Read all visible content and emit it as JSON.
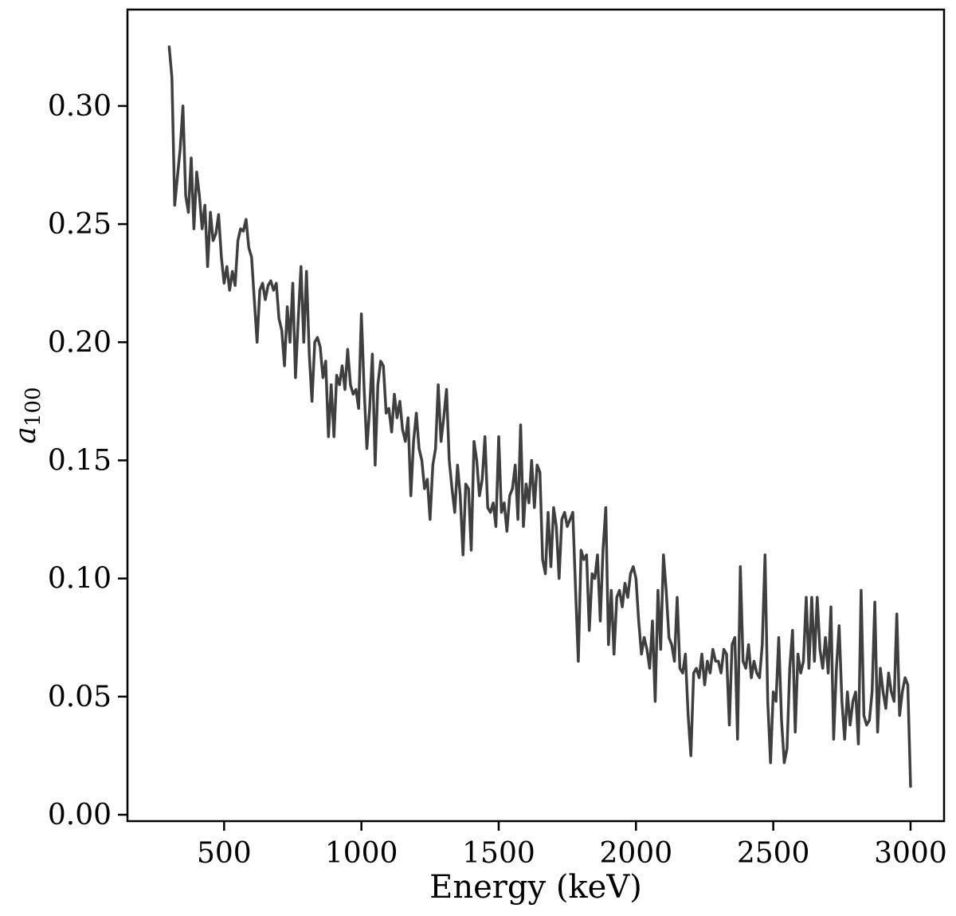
{
  "figure": {
    "background": "#ffffff"
  },
  "chart_data": {
    "type": "line",
    "title": "",
    "xlabel": "Energy (keV)",
    "ylabel": "a100",
    "ylabel_symbol": "a",
    "ylabel_subscript": "100",
    "line_color": "#3f3f3f",
    "line_width": 3.5,
    "axis_color": "#000000",
    "grid": false,
    "legend": false,
    "xlim": [
      148,
      3122
    ],
    "ylim": [
      -0.0027,
      0.3408
    ],
    "x_ticks": [
      500,
      1000,
      1500,
      2000,
      2500,
      3000
    ],
    "x_tick_labels": [
      "500",
      "1000",
      "1500",
      "2000",
      "2500",
      "3000"
    ],
    "y_ticks": [
      0.0,
      0.05,
      0.1,
      0.15,
      0.2,
      0.25,
      0.3
    ],
    "y_tick_labels": [
      "0.00",
      "0.05",
      "0.10",
      "0.15",
      "0.20",
      "0.25",
      "0.30"
    ],
    "x": [
      300,
      310,
      320,
      330,
      340,
      350,
      360,
      370,
      380,
      390,
      400,
      410,
      420,
      430,
      440,
      450,
      460,
      470,
      480,
      490,
      500,
      510,
      520,
      530,
      540,
      550,
      560,
      570,
      580,
      590,
      600,
      610,
      620,
      630,
      640,
      650,
      660,
      670,
      680,
      690,
      700,
      710,
      720,
      730,
      740,
      750,
      760,
      770,
      780,
      790,
      800,
      810,
      820,
      830,
      840,
      850,
      860,
      870,
      880,
      890,
      900,
      910,
      920,
      930,
      940,
      950,
      960,
      970,
      980,
      990,
      1000,
      1010,
      1020,
      1030,
      1040,
      1050,
      1060,
      1070,
      1080,
      1090,
      1100,
      1110,
      1120,
      1130,
      1140,
      1150,
      1160,
      1170,
      1180,
      1190,
      1200,
      1210,
      1220,
      1230,
      1240,
      1250,
      1260,
      1270,
      1280,
      1290,
      1300,
      1310,
      1320,
      1330,
      1340,
      1350,
      1360,
      1370,
      1380,
      1390,
      1400,
      1410,
      1420,
      1430,
      1440,
      1450,
      1460,
      1470,
      1480,
      1490,
      1500,
      1510,
      1520,
      1530,
      1540,
      1550,
      1560,
      1570,
      1580,
      1590,
      1600,
      1610,
      1620,
      1630,
      1640,
      1650,
      1660,
      1670,
      1680,
      1690,
      1700,
      1710,
      1720,
      1730,
      1740,
      1750,
      1760,
      1770,
      1780,
      1790,
      1800,
      1810,
      1820,
      1830,
      1840,
      1850,
      1860,
      1870,
      1880,
      1890,
      1900,
      1910,
      1920,
      1930,
      1940,
      1950,
      1960,
      1970,
      1980,
      1990,
      2000,
      2010,
      2020,
      2030,
      2040,
      2050,
      2060,
      2070,
      2080,
      2090,
      2100,
      2110,
      2120,
      2130,
      2140,
      2150,
      2160,
      2170,
      2180,
      2190,
      2200,
      2210,
      2220,
      2230,
      2240,
      2250,
      2260,
      2270,
      2280,
      2290,
      2300,
      2310,
      2320,
      2330,
      2340,
      2350,
      2360,
      2370,
      2380,
      2390,
      2400,
      2410,
      2420,
      2430,
      2440,
      2450,
      2460,
      2470,
      2480,
      2490,
      2500,
      2510,
      2520,
      2530,
      2540,
      2550,
      2560,
      2570,
      2580,
      2590,
      2600,
      2610,
      2620,
      2630,
      2640,
      2650,
      2660,
      2670,
      2680,
      2690,
      2700,
      2710,
      2720,
      2730,
      2740,
      2750,
      2760,
      2770,
      2780,
      2790,
      2800,
      2810,
      2820,
      2830,
      2840,
      2850,
      2860,
      2870,
      2880,
      2890,
      2900,
      2910,
      2920,
      2930,
      2940,
      2950,
      2960,
      2970,
      2980,
      2990,
      3000
    ],
    "y": [
      0.325,
      0.312,
      0.258,
      0.27,
      0.282,
      0.3,
      0.262,
      0.255,
      0.278,
      0.248,
      0.272,
      0.262,
      0.248,
      0.258,
      0.232,
      0.255,
      0.243,
      0.246,
      0.254,
      0.236,
      0.225,
      0.232,
      0.222,
      0.23,
      0.224,
      0.243,
      0.248,
      0.247,
      0.252,
      0.24,
      0.236,
      0.218,
      0.2,
      0.222,
      0.225,
      0.218,
      0.224,
      0.226,
      0.222,
      0.225,
      0.21,
      0.205,
      0.19,
      0.215,
      0.2,
      0.225,
      0.185,
      0.21,
      0.232,
      0.2,
      0.23,
      0.195,
      0.175,
      0.2,
      0.202,
      0.198,
      0.185,
      0.192,
      0.16,
      0.182,
      0.16,
      0.186,
      0.182,
      0.19,
      0.18,
      0.197,
      0.182,
      0.178,
      0.18,
      0.172,
      0.212,
      0.18,
      0.155,
      0.172,
      0.195,
      0.148,
      0.182,
      0.192,
      0.19,
      0.17,
      0.172,
      0.162,
      0.178,
      0.168,
      0.175,
      0.163,
      0.158,
      0.168,
      0.135,
      0.158,
      0.17,
      0.155,
      0.15,
      0.138,
      0.142,
      0.125,
      0.148,
      0.155,
      0.182,
      0.158,
      0.168,
      0.18,
      0.15,
      0.138,
      0.128,
      0.148,
      0.135,
      0.11,
      0.14,
      0.138,
      0.112,
      0.158,
      0.15,
      0.135,
      0.142,
      0.16,
      0.13,
      0.128,
      0.132,
      0.122,
      0.16,
      0.128,
      0.132,
      0.12,
      0.135,
      0.138,
      0.148,
      0.125,
      0.165,
      0.122,
      0.14,
      0.132,
      0.15,
      0.13,
      0.148,
      0.145,
      0.108,
      0.102,
      0.128,
      0.105,
      0.13,
      0.122,
      0.1,
      0.125,
      0.128,
      0.122,
      0.125,
      0.128,
      0.095,
      0.065,
      0.112,
      0.108,
      0.11,
      0.078,
      0.102,
      0.1,
      0.11,
      0.082,
      0.112,
      0.13,
      0.072,
      0.095,
      0.068,
      0.092,
      0.095,
      0.088,
      0.098,
      0.092,
      0.102,
      0.105,
      0.1,
      0.082,
      0.068,
      0.075,
      0.07,
      0.062,
      0.082,
      0.048,
      0.095,
      0.07,
      0.11,
      0.095,
      0.075,
      0.072,
      0.065,
      0.092,
      0.062,
      0.06,
      0.068,
      0.042,
      0.025,
      0.06,
      0.062,
      0.058,
      0.068,
      0.055,
      0.065,
      0.06,
      0.07,
      0.065,
      0.065,
      0.06,
      0.07,
      0.068,
      0.038,
      0.072,
      0.075,
      0.032,
      0.105,
      0.065,
      0.062,
      0.072,
      0.058,
      0.065,
      0.06,
      0.058,
      0.072,
      0.11,
      0.048,
      0.022,
      0.052,
      0.048,
      0.075,
      0.04,
      0.022,
      0.028,
      0.062,
      0.078,
      0.035,
      0.068,
      0.06,
      0.065,
      0.092,
      0.062,
      0.092,
      0.065,
      0.092,
      0.07,
      0.062,
      0.075,
      0.06,
      0.088,
      0.032,
      0.062,
      0.08,
      0.048,
      0.032,
      0.052,
      0.038,
      0.048,
      0.052,
      0.03,
      0.095,
      0.042,
      0.038,
      0.04,
      0.052,
      0.09,
      0.035,
      0.062,
      0.052,
      0.045,
      0.06,
      0.052,
      0.048,
      0.085,
      0.042,
      0.052,
      0.058,
      0.055,
      0.012
    ]
  }
}
